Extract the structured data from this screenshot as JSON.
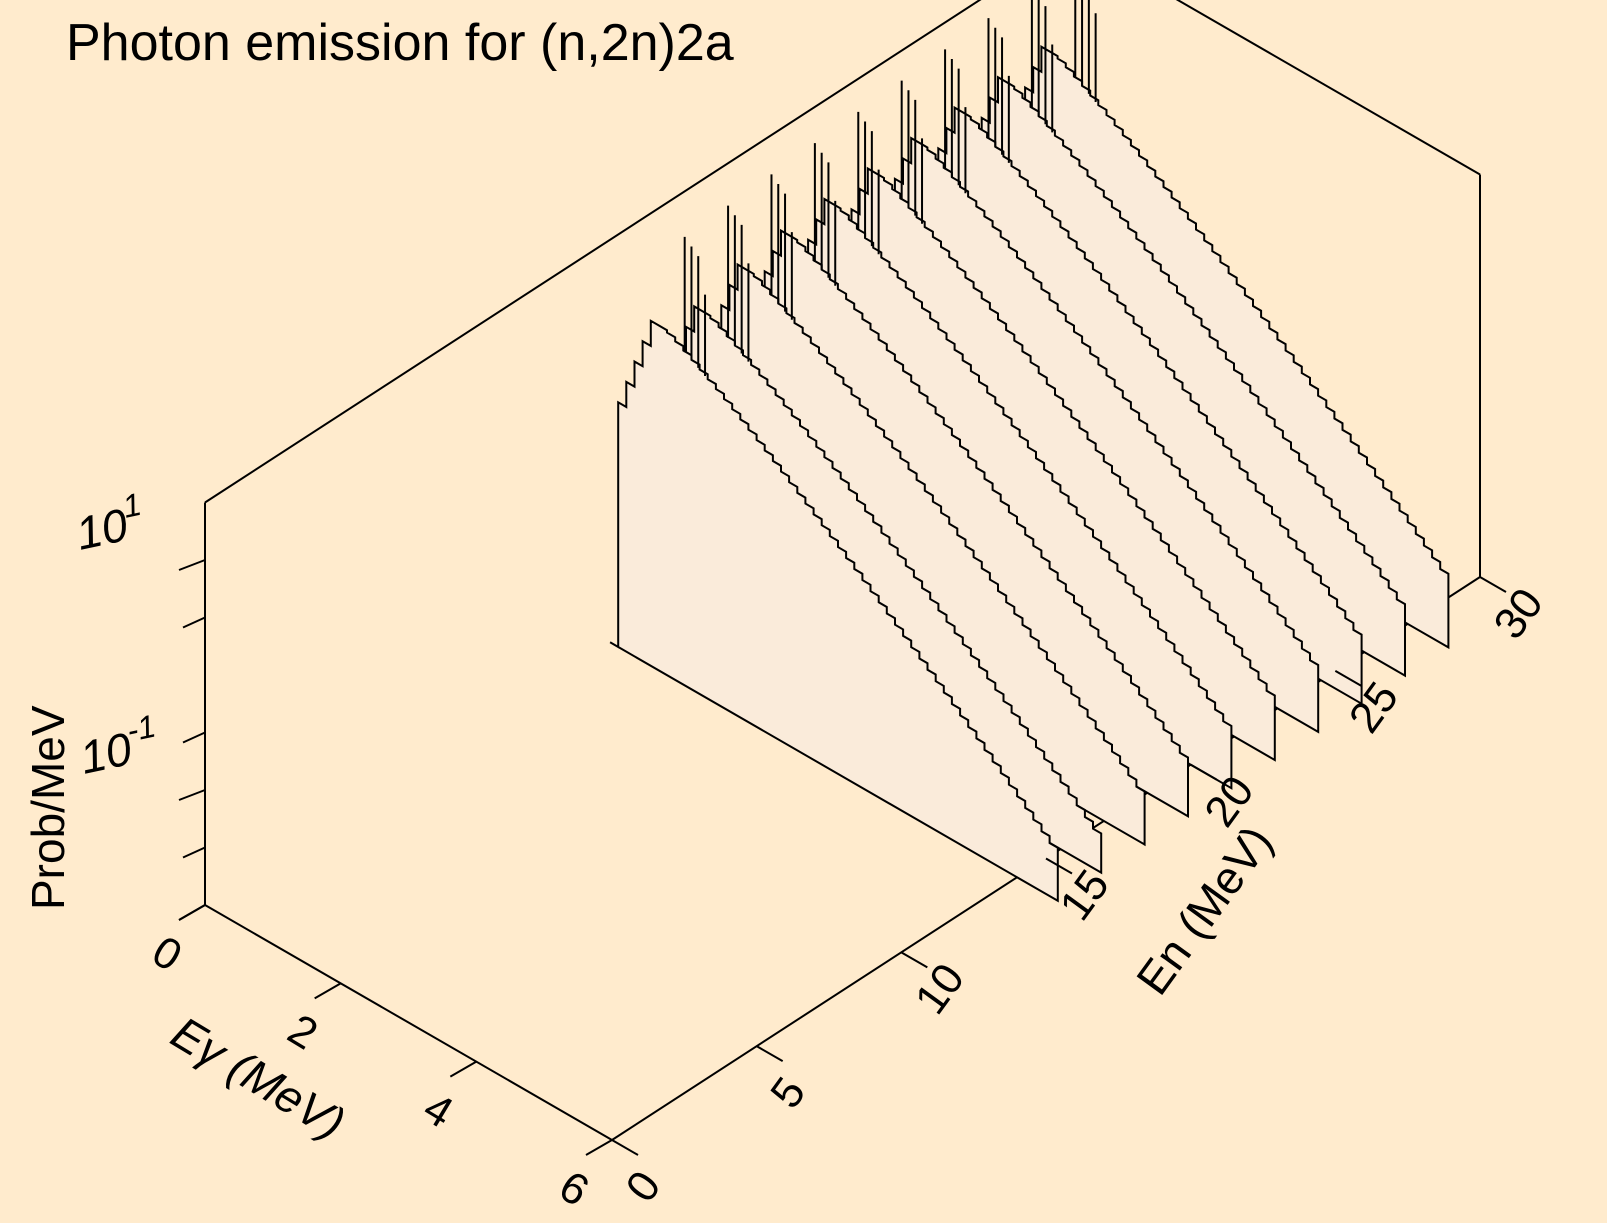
{
  "chart_data": {
    "type": "area",
    "title": "Photon emission for (n,2n)2a",
    "xlabel": "Eγ (MeV)",
    "ylabel": "En (MeV)",
    "zlabel": "Prob/MeV",
    "x_axis": {
      "name": "Eγ",
      "unit": "MeV",
      "range": [
        0,
        6
      ],
      "ticks": [
        "0",
        "2",
        "4",
        "6"
      ]
    },
    "y_axis": {
      "name": "En",
      "unit": "MeV",
      "range": [
        0,
        30
      ],
      "ticks": [
        "0",
        "5",
        "10",
        "15",
        "20",
        "25",
        "30"
      ]
    },
    "z_axis": {
      "scale": "log",
      "range_log10": [
        -2,
        1.5
      ],
      "tick_labels": [
        {
          "base": "10",
          "exp": "1",
          "log10": 1
        },
        {
          "base": "10",
          "exp": "-1",
          "log10": -1
        }
      ]
    },
    "series": [
      {
        "En": 14,
        "log10_peak": 1.0,
        "Emax": 6.6
      },
      {
        "En": 15.5,
        "log10_peak": 0.88,
        "Emax": 6.6
      },
      {
        "En": 17,
        "log10_peak": 1.0,
        "Emax": 6.6
      },
      {
        "En": 18.5,
        "log10_peak": 1.05,
        "Emax": 6.6
      },
      {
        "En": 20,
        "log10_peak": 1.08,
        "Emax": 6.6
      },
      {
        "En": 21.5,
        "log10_peak": 1.1,
        "Emax": 6.6
      },
      {
        "En": 23,
        "log10_peak": 1.12,
        "Emax": 6.6
      },
      {
        "En": 24.5,
        "log10_peak": 1.14,
        "Emax": 6.6
      },
      {
        "En": 26,
        "log10_peak": 1.16,
        "Emax": 6.6
      },
      {
        "En": 27.5,
        "log10_peak": 1.18,
        "Emax": 6.6
      }
    ],
    "spikes": {
      "Eγ": [
        1.1,
        1.2,
        1.3,
        1.4
      ],
      "log10_height": [
        1.9,
        1.85,
        1.8,
        1.5
      ]
    },
    "grid": false,
    "legend": "none"
  }
}
